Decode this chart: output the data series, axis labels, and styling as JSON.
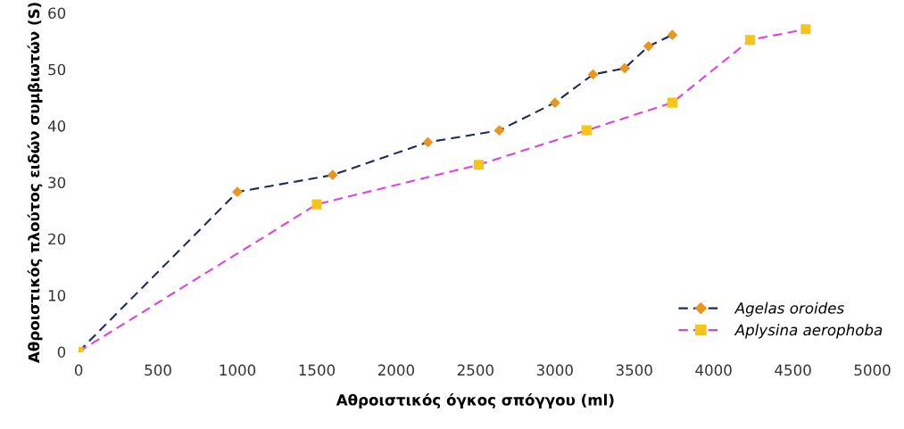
{
  "chart_data": {
    "type": "line",
    "xlabel": "Αθροιστικός όγκος σπόγγου (ml)",
    "ylabel": "Αθροιστικός πλούτος ειδών συμβιωτών (S)",
    "xlim": [
      0,
      5000
    ],
    "xticks": [
      0,
      500,
      1000,
      1500,
      2000,
      2500,
      3000,
      3500,
      4000,
      4500,
      5000
    ],
    "ylim": [
      0,
      60
    ],
    "yticks": [
      0,
      10,
      20,
      30,
      40,
      50,
      60
    ],
    "grid": false,
    "legend": "bottom right",
    "line_style": "dashed",
    "series": [
      {
        "name": "Agelas oroides",
        "color": "#1f2a5c",
        "marker": "diamond",
        "colors": [
          "#e8961e",
          "#e8961e",
          "#e8961e",
          "#e8961e",
          "#e8961e",
          "#e8961e",
          "#e8961e",
          "#e8961e",
          "#e8961e",
          "#e8961e"
        ],
        "x": [
          0,
          1000,
          1600,
          2200,
          2650,
          3000,
          3240,
          3440,
          3590,
          3740
        ],
        "values": [
          0,
          28.3,
          31.3,
          37.1,
          39.2,
          44.1,
          49.1,
          50.2,
          54.1,
          56.1
        ]
      },
      {
        "name": "Aplysina aerophoba",
        "color": "#e040e0",
        "marker": "square",
        "colors": [
          "#f5c518",
          "#f5c518",
          "#f5c518",
          "#f5c518",
          "#f5c518",
          "#f5c518",
          "#f5c518"
        ],
        "x": [
          0,
          1500,
          2520,
          3200,
          3740,
          4230,
          4580
        ],
        "values": [
          0,
          26.1,
          33.1,
          39.2,
          44.1,
          55.2,
          57.1
        ]
      }
    ]
  }
}
